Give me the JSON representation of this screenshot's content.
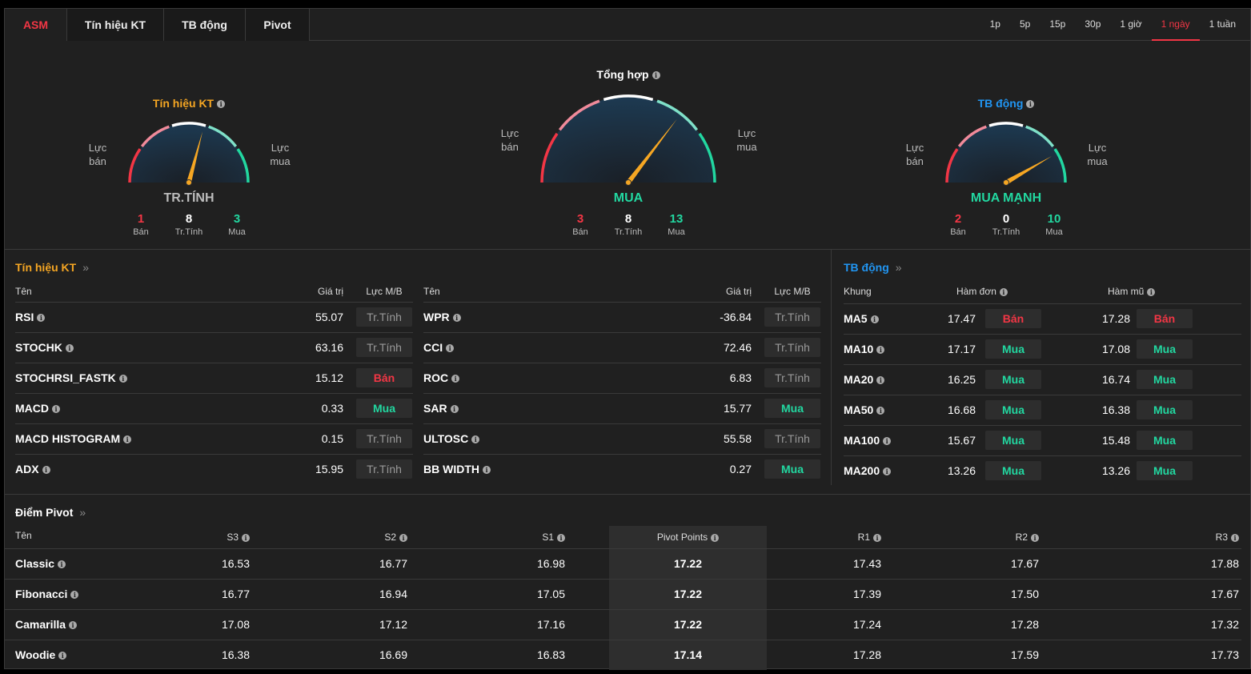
{
  "tabs": [
    "ASM",
    "Tín hiệu KT",
    "TB động",
    "Pivot"
  ],
  "active_tab": 0,
  "timeframes": [
    "1p",
    "5p",
    "15p",
    "30p",
    "1 giờ",
    "1 ngày",
    "1 tuần"
  ],
  "active_timeframe": 5,
  "colors": {
    "sell": "#f23645",
    "buy": "#22d7a0",
    "neutral": "#999999",
    "accent": "#f5a623",
    "blue": "#2196f3"
  },
  "gauges": [
    {
      "title": "Tín hiệu KT",
      "title_color": "#f5a623",
      "left": "Lực\nbán",
      "right": "Lực\nmua",
      "verdict": "TR.TÍNH",
      "verdict_color": "#bbbbbb",
      "counts": [
        {
          "v": "1",
          "l": "Bán"
        },
        {
          "v": "8",
          "l": "Tr.Tính"
        },
        {
          "v": "3",
          "l": "Mua"
        }
      ]
    },
    {
      "title": "Tổng hợp",
      "title_color": "#ffffff",
      "left": "Lực\nbán",
      "right": "Lực\nmua",
      "verdict": "MUA",
      "verdict_color": "#22d7a0",
      "counts": [
        {
          "v": "3",
          "l": "Bán"
        },
        {
          "v": "8",
          "l": "Tr.Tính"
        },
        {
          "v": "13",
          "l": "Mua"
        }
      ]
    },
    {
      "title": "TB động",
      "title_color": "#2196f3",
      "left": "Lực\nbán",
      "right": "Lực\nmua",
      "verdict": "MUA MẠNH",
      "verdict_color": "#22d7a0",
      "counts": [
        {
          "v": "2",
          "l": "Bán"
        },
        {
          "v": "0",
          "l": "Tr.Tính"
        },
        {
          "v": "10",
          "l": "Mua"
        }
      ]
    }
  ],
  "tech": {
    "title": "Tín hiệu KT",
    "headers": [
      "Tên",
      "Giá trị",
      "Lực M/B"
    ],
    "left": [
      [
        "RSI",
        "55.07",
        "Tr.Tính"
      ],
      [
        "STOCHK",
        "63.16",
        "Tr.Tính"
      ],
      [
        "STOCHRSI_FASTK",
        "15.12",
        "Bán"
      ],
      [
        "MACD",
        "0.33",
        "Mua"
      ],
      [
        "MACD HISTOGRAM",
        "0.15",
        "Tr.Tính"
      ],
      [
        "ADX",
        "15.95",
        "Tr.Tính"
      ]
    ],
    "right": [
      [
        "WPR",
        "-36.84",
        "Tr.Tính"
      ],
      [
        "CCI",
        "72.46",
        "Tr.Tính"
      ],
      [
        "ROC",
        "6.83",
        "Tr.Tính"
      ],
      [
        "SAR",
        "15.77",
        "Mua"
      ],
      [
        "ULTOSC",
        "55.58",
        "Tr.Tính"
      ],
      [
        "BB WIDTH",
        "0.27",
        "Mua"
      ]
    ]
  },
  "ma": {
    "title": "TB động",
    "headers": [
      "Khung",
      "Hàm đơn",
      "Hàm mũ"
    ],
    "rows": [
      [
        "MA5",
        "17.47",
        "Bán",
        "17.28",
        "Bán"
      ],
      [
        "MA10",
        "17.17",
        "Mua",
        "17.08",
        "Mua"
      ],
      [
        "MA20",
        "16.25",
        "Mua",
        "16.74",
        "Mua"
      ],
      [
        "MA50",
        "16.68",
        "Mua",
        "16.38",
        "Mua"
      ],
      [
        "MA100",
        "15.67",
        "Mua",
        "15.48",
        "Mua"
      ],
      [
        "MA200",
        "13.26",
        "Mua",
        "13.26",
        "Mua"
      ]
    ]
  },
  "pivot": {
    "title": "Điểm Pivot",
    "headers": [
      "Tên",
      "S3",
      "S2",
      "S1",
      "Pivot Points",
      "R1",
      "R2",
      "R3"
    ],
    "rows": [
      [
        "Classic",
        "16.53",
        "16.77",
        "16.98",
        "17.22",
        "17.43",
        "17.67",
        "17.88"
      ],
      [
        "Fibonacci",
        "16.77",
        "16.94",
        "17.05",
        "17.22",
        "17.39",
        "17.50",
        "17.67"
      ],
      [
        "Camarilla",
        "17.08",
        "17.12",
        "17.16",
        "17.22",
        "17.24",
        "17.28",
        "17.32"
      ],
      [
        "Woodie",
        "16.38",
        "16.69",
        "16.83",
        "17.14",
        "17.28",
        "17.59",
        "17.73"
      ]
    ]
  }
}
